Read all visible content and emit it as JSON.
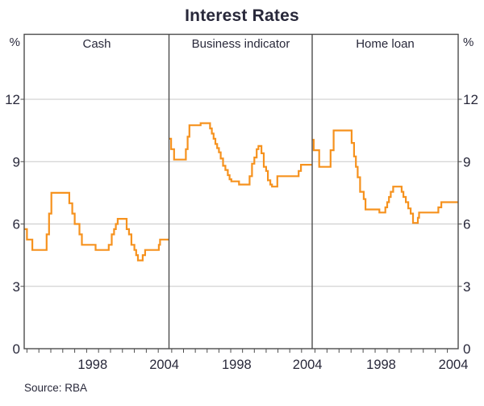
{
  "title": "Interest Rates",
  "source": "Source: RBA",
  "axis": {
    "unit_left": "%",
    "unit_right": "%",
    "ytick_labels": [
      "0",
      "3",
      "6",
      "9",
      "12"
    ],
    "xtick_labels": [
      "1998",
      "2004"
    ]
  },
  "colors": {
    "line": "#f6921e",
    "grid": "#c8c8c8",
    "frame": "#4d4d4d",
    "text": "#28283a",
    "background": "#ffffff"
  },
  "chart_data": {
    "type": "line",
    "style": "step",
    "title": "Interest Rates",
    "ylabel": "%",
    "ylim": [
      0,
      15.13
    ],
    "yticks": [
      0,
      3,
      6,
      9,
      12
    ],
    "gridlines": [
      3,
      6,
      9,
      12
    ],
    "grid": true,
    "legend": "none",
    "x_range": [
      1992.77,
      2004.9
    ],
    "x_tick_years": [
      1993,
      1994,
      1995,
      1996,
      1997,
      1998,
      1999,
      2000,
      2001,
      2002,
      2003,
      2004
    ],
    "x_labeled_years": [
      1998,
      2004
    ],
    "source": "Source: RBA",
    "panels": [
      {
        "label": "Cash",
        "points": [
          [
            1992.77,
            5.75
          ],
          [
            1993.0,
            5.25
          ],
          [
            1993.45,
            4.75
          ],
          [
            1994.65,
            5.5
          ],
          [
            1994.85,
            6.5
          ],
          [
            1995.05,
            7.5
          ],
          [
            1996.55,
            7.0
          ],
          [
            1996.8,
            6.5
          ],
          [
            1997.0,
            6.0
          ],
          [
            1997.4,
            5.5
          ],
          [
            1997.6,
            5.0
          ],
          [
            1998.75,
            4.75
          ],
          [
            1999.85,
            5.0
          ],
          [
            2000.1,
            5.5
          ],
          [
            2000.3,
            5.75
          ],
          [
            2000.45,
            6.0
          ],
          [
            2000.6,
            6.25
          ],
          [
            2001.35,
            5.75
          ],
          [
            2001.55,
            5.5
          ],
          [
            2001.75,
            5.0
          ],
          [
            2002.0,
            4.75
          ],
          [
            2002.15,
            4.5
          ],
          [
            2002.3,
            4.25
          ],
          [
            2002.7,
            4.5
          ],
          [
            2002.9,
            4.75
          ],
          [
            2004.05,
            5.0
          ],
          [
            2004.15,
            5.25
          ]
        ]
      },
      {
        "label": "Business indicator",
        "points": [
          [
            1992.77,
            10.1
          ],
          [
            1992.95,
            9.6
          ],
          [
            1993.2,
            9.1
          ],
          [
            1994.2,
            9.6
          ],
          [
            1994.35,
            10.2
          ],
          [
            1994.5,
            10.75
          ],
          [
            1995.45,
            10.85
          ],
          [
            1996.25,
            10.6
          ],
          [
            1996.4,
            10.35
          ],
          [
            1996.55,
            10.1
          ],
          [
            1996.7,
            9.85
          ],
          [
            1996.85,
            9.65
          ],
          [
            1997.0,
            9.45
          ],
          [
            1997.15,
            9.15
          ],
          [
            1997.35,
            8.8
          ],
          [
            1997.55,
            8.6
          ],
          [
            1997.75,
            8.35
          ],
          [
            1997.9,
            8.15
          ],
          [
            1998.05,
            8.05
          ],
          [
            1998.7,
            7.9
          ],
          [
            1999.6,
            8.3
          ],
          [
            1999.8,
            8.9
          ],
          [
            2000.0,
            9.2
          ],
          [
            2000.2,
            9.6
          ],
          [
            2000.35,
            9.75
          ],
          [
            2000.6,
            9.4
          ],
          [
            2000.8,
            8.75
          ],
          [
            2001.0,
            8.55
          ],
          [
            2001.15,
            8.1
          ],
          [
            2001.35,
            7.9
          ],
          [
            2001.5,
            7.8
          ],
          [
            2001.95,
            8.3
          ],
          [
            2003.75,
            8.55
          ],
          [
            2003.95,
            8.85
          ]
        ]
      },
      {
        "label": "Home loan",
        "points": [
          [
            1992.77,
            10.05
          ],
          [
            1992.9,
            9.55
          ],
          [
            1993.35,
            8.75
          ],
          [
            1994.3,
            9.55
          ],
          [
            1994.55,
            10.5
          ],
          [
            1996.05,
            9.9
          ],
          [
            1996.25,
            9.25
          ],
          [
            1996.4,
            8.75
          ],
          [
            1996.55,
            8.25
          ],
          [
            1996.75,
            7.55
          ],
          [
            1997.05,
            7.2
          ],
          [
            1997.2,
            6.7
          ],
          [
            1998.35,
            6.55
          ],
          [
            1998.85,
            6.8
          ],
          [
            1999.0,
            7.05
          ],
          [
            1999.15,
            7.3
          ],
          [
            1999.3,
            7.55
          ],
          [
            1999.5,
            7.8
          ],
          [
            2000.2,
            7.55
          ],
          [
            2000.35,
            7.3
          ],
          [
            2000.55,
            7.05
          ],
          [
            2000.75,
            6.75
          ],
          [
            2000.95,
            6.5
          ],
          [
            2001.15,
            6.05
          ],
          [
            2001.55,
            6.3
          ],
          [
            2001.65,
            6.55
          ],
          [
            2003.25,
            6.8
          ],
          [
            2003.5,
            7.05
          ]
        ]
      }
    ]
  }
}
